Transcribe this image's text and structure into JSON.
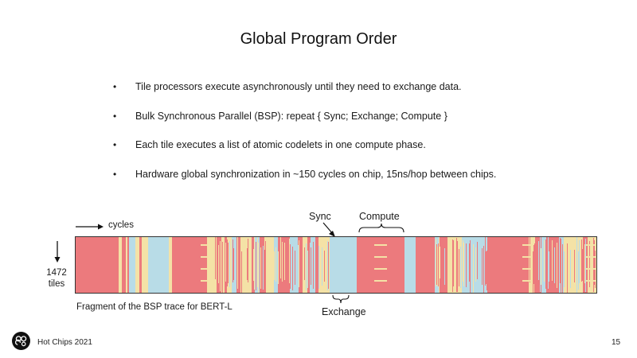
{
  "slide": {
    "title": "Global Program Order",
    "bullets": [
      "Tile processors execute asynchronously until they need to exchange data.",
      "Bulk Synchronous Parallel (BSP):  repeat { Sync; Exchange; Compute }",
      "Each tile executes a list of atomic codelets in one compute phase.",
      "Hardware global synchronization in ~150 cycles on chip, 15ns/hop between chips."
    ],
    "bullet_symbol": "•"
  },
  "trace": {
    "x_label": "cycles",
    "y_label_number": "1472",
    "y_label_unit": "tiles",
    "sync_label": "Sync",
    "compute_label": "Compute",
    "exchange_label": "Exchange",
    "caption": "Fragment of the BSP trace for BERT-L",
    "colors": {
      "compute": "#ec7a7d",
      "exchange": "#b8dce7",
      "sync": "#f4e2a6",
      "border": "#333333"
    }
  },
  "footer": {
    "event": "Hot Chips 2021",
    "page_number": "15",
    "logo_icon": "hot-chips-logo-icon"
  }
}
